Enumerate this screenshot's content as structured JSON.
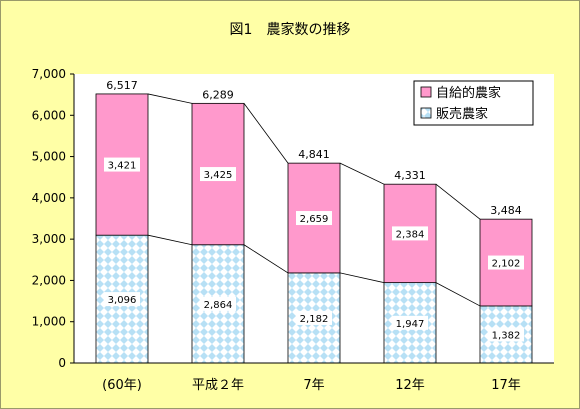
{
  "chart_data": {
    "type": "bar",
    "stacked": true,
    "title": "図1　農家数の推移",
    "categories": [
      "(60年)",
      "平成２年",
      "7年",
      "12年",
      "17年"
    ],
    "series": [
      {
        "name": "販売農家",
        "values": [
          3096,
          2864,
          2182,
          1947,
          1382
        ],
        "color": "#B7E0F5",
        "pattern": "checker-diamond"
      },
      {
        "name": "自給的農家",
        "values": [
          3421,
          3425,
          2659,
          2384,
          2102
        ],
        "color": "#FF99CC"
      }
    ],
    "totals": [
      6517,
      6289,
      4841,
      4331,
      3484
    ],
    "ylim": [
      0,
      7000
    ],
    "ytick_step": 1000,
    "grid": false,
    "legend": {
      "position": "top-right",
      "order": [
        "自給的農家",
        "販売農家"
      ]
    },
    "colors": {
      "background": "#FFFFA6",
      "plot_background": "#FFFFFF",
      "pink": "#FF99CC",
      "blue": "#B7E0F5"
    }
  }
}
